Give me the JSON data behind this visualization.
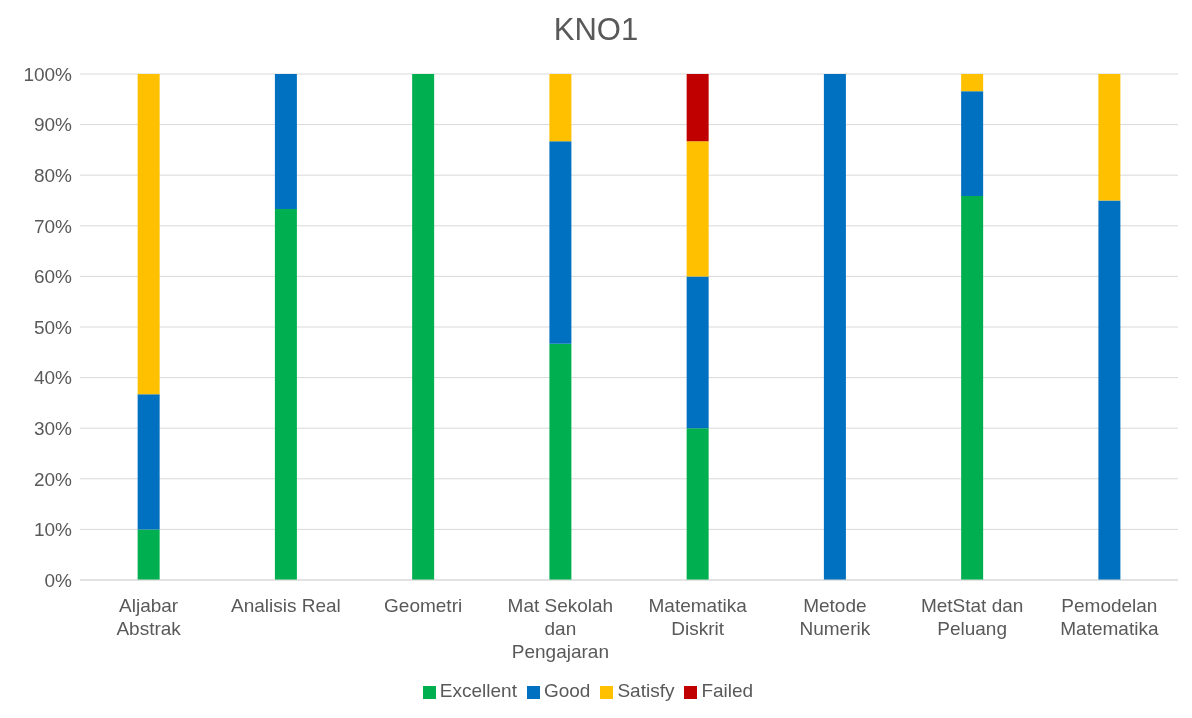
{
  "chart_data": {
    "type": "bar",
    "title": "KNO1",
    "stacked": true,
    "categories": [
      "Aljabar Abstrak",
      "Analisis Real",
      "Geometri",
      "Mat Sekolah dan Pengajaran",
      "Matematika Diskrit",
      "Metode Numerik",
      "MetStat dan Peluang",
      "Pemodelan Matematika"
    ],
    "series": [
      {
        "name": "Excellent",
        "color": "#00b050",
        "values": [
          10,
          73.3,
          100,
          46.7,
          30,
          0,
          75.9,
          0
        ]
      },
      {
        "name": "Good",
        "color": "#0070c0",
        "values": [
          26.7,
          26.7,
          0,
          40,
          30,
          100,
          20.7,
          75
        ]
      },
      {
        "name": "Satisfy",
        "color": "#ffc000",
        "values": [
          63.3,
          0,
          0,
          13.3,
          26.7,
          0,
          3.4,
          25
        ]
      },
      {
        "name": "Failed",
        "color": "#c00000",
        "values": [
          0,
          0,
          0,
          0,
          13.3,
          0,
          0,
          0
        ]
      }
    ],
    "ylim": [
      0,
      100
    ],
    "yticks": [
      {
        "value": 0,
        "label": "0%"
      },
      {
        "value": 10,
        "label": "10%"
      },
      {
        "value": 20,
        "label": "20%"
      },
      {
        "value": 30,
        "label": "30%"
      },
      {
        "value": 40,
        "label": "40%"
      },
      {
        "value": 50,
        "label": "50%"
      },
      {
        "value": 60,
        "label": "60%"
      },
      {
        "value": 70,
        "label": "70%"
      },
      {
        "value": 80,
        "label": "80%"
      },
      {
        "value": 90,
        "label": "90%"
      },
      {
        "value": 100,
        "label": "100%"
      }
    ],
    "grid": "y",
    "legend": "bottom"
  }
}
